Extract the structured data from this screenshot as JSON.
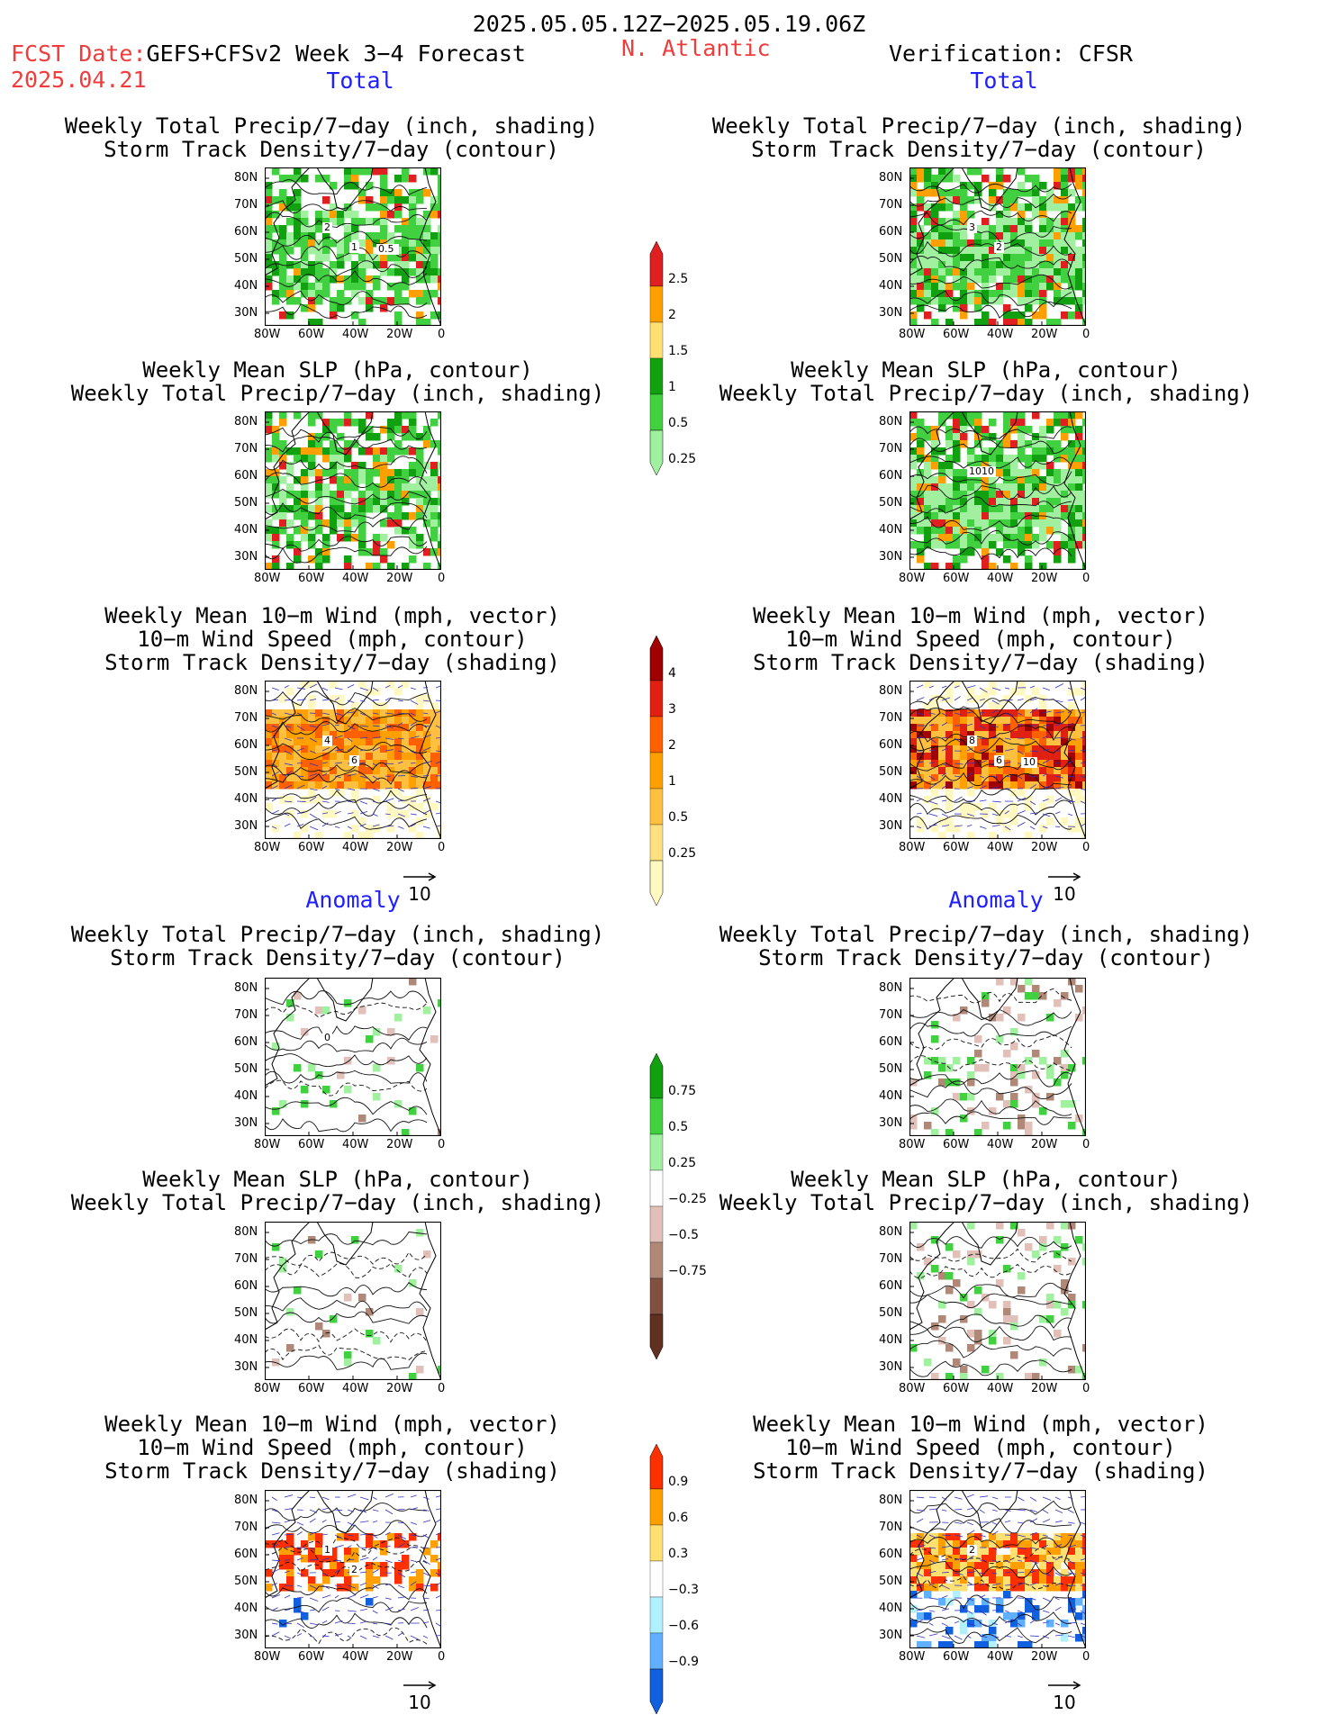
{
  "header": {
    "period": "2025.05.05.12Z−2025.05.19.06Z",
    "fcst_label": "FCST Date:",
    "model": "GEFS+CFSv2 Week 3−4 Forecast",
    "fcst_date": "2025.04.21",
    "region": "N. Atlantic",
    "verification": "Verification: CFSR"
  },
  "sections": {
    "total": "Total",
    "anomaly": "Anomaly"
  },
  "panel_titles": {
    "precip_track": "Weekly Total Precip/7−day (inch, shading)\nStorm Track Density/7−day (contour)",
    "slp_precip": "Weekly Mean SLP (hPa, contour)\nWeekly Total Precip/7−day (inch, shading)",
    "wind_track": "Weekly Mean 10−m Wind (mph, vector)\n10−m Wind Speed (mph, contour)\nStorm Track Density/7−day (shading)"
  },
  "axes": {
    "lat_ticks": [
      "80N",
      "70N",
      "60N",
      "50N",
      "40N",
      "30N"
    ],
    "lon_ticks": [
      "80W",
      "60W",
      "40W",
      "20W",
      "0"
    ]
  },
  "vector_ref": "10",
  "colorbars": {
    "precip_total": {
      "labels": [
        "2.5",
        "2",
        "1.5",
        "1",
        "0.5",
        "0.25"
      ],
      "colors": [
        "#e02020",
        "#ffa000",
        "#ffe070",
        "#10a010",
        "#40d040",
        "#a0f0a0"
      ]
    },
    "track_total": {
      "labels": [
        "4",
        "3",
        "2",
        "1",
        "0.5",
        "0.25"
      ],
      "colors": [
        "#a00000",
        "#e02010",
        "#ff6000",
        "#ffa000",
        "#ffc040",
        "#ffe080",
        "#fff8c0"
      ]
    },
    "precip_anom": {
      "labels": [
        "0.75",
        "0.5",
        "0.25",
        "−0.25",
        "−0.5",
        "−0.75"
      ],
      "colors": [
        "#10a010",
        "#40d040",
        "#a0f0a0",
        "#ffffff",
        "#e0c0b8",
        "#b08878",
        "#805040",
        "#603020"
      ]
    },
    "track_anom": {
      "labels": [
        "0.9",
        "0.6",
        "0.3",
        "−0.3",
        "−0.6",
        "−0.9"
      ],
      "colors": [
        "#ff3000",
        "#ffa000",
        "#ffe070",
        "#ffffff",
        "#b0f0ff",
        "#60b0ff",
        "#1060e0"
      ]
    }
  },
  "panel_labels": {
    "fcst_total_precip": [
      "2",
      "1",
      "0.5"
    ],
    "verif_total_precip": [
      "3",
      "2"
    ],
    "verif_total_slp": [
      "1010"
    ],
    "fcst_total_wind": [
      "4",
      "6"
    ],
    "verif_total_wind": [
      "8",
      "6",
      "10"
    ],
    "fcst_anom_precip": [
      "0"
    ],
    "fcst_anom_wind": [
      "1",
      "2"
    ],
    "verif_anom_wind": [
      "2"
    ]
  }
}
